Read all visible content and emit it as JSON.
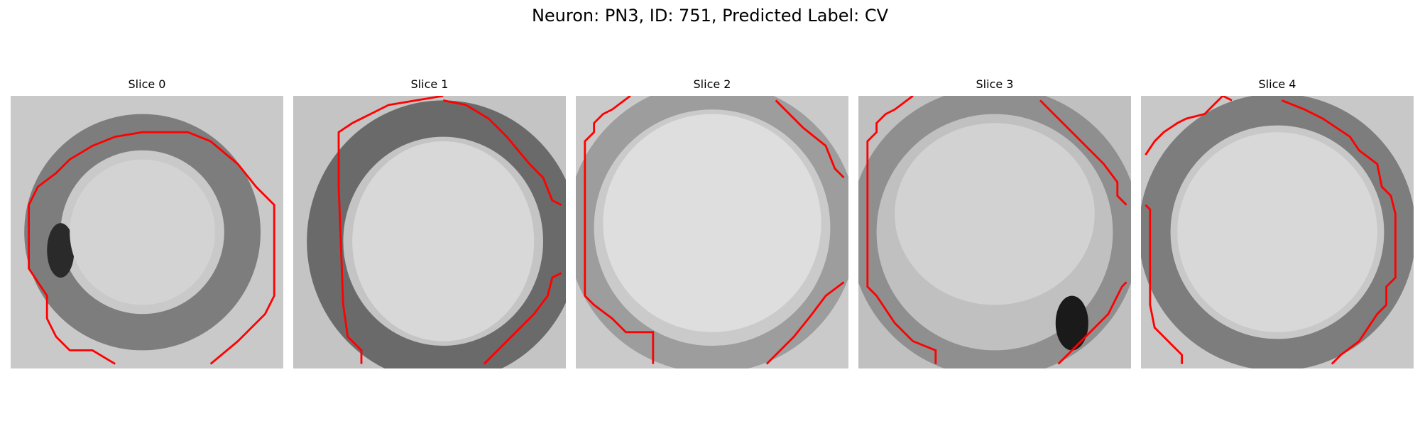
{
  "figure": {
    "title": "Neuron: PN3, ID: 751, Predicted Label: CV"
  },
  "slices": [
    {
      "title": "Slice 0"
    },
    {
      "title": "Slice 1"
    },
    {
      "title": "Slice 2"
    },
    {
      "title": "Slice 3"
    },
    {
      "title": "Slice 4"
    }
  ],
  "colors": {
    "contour": "#ff0000",
    "background": "#ffffff"
  }
}
